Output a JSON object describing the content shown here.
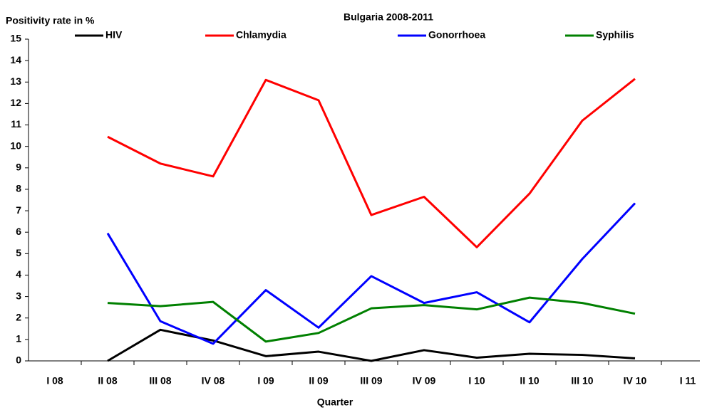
{
  "chart_data": {
    "type": "line",
    "title": "Bulgaria 2008-2011",
    "y_label": "Positivity rate in %",
    "x_label": "Quarter",
    "categories": [
      "I 08",
      "II 08",
      "III 08",
      "IV 08",
      "I 09",
      "II 09",
      "III 09",
      "IV 09",
      "I 10",
      "II 10",
      "III 10",
      "IV 10",
      "I 11"
    ],
    "series": [
      {
        "name": "HIV",
        "color": "#000000",
        "values": [
          null,
          0,
          1.45,
          0.95,
          0.22,
          0.43,
          0,
          0.5,
          0.15,
          0.33,
          0.28,
          0.12,
          null
        ]
      },
      {
        "name": "Chlamydia",
        "color": "#ff0000",
        "values": [
          null,
          10.45,
          9.2,
          8.6,
          13.1,
          12.15,
          6.8,
          7.65,
          5.3,
          7.8,
          11.2,
          13.15,
          null
        ]
      },
      {
        "name": "Gonorrhoea",
        "color": "#0000ff",
        "values": [
          null,
          5.95,
          1.85,
          0.8,
          3.3,
          1.55,
          3.95,
          2.7,
          3.2,
          1.8,
          4.75,
          7.35,
          null
        ]
      },
      {
        "name": "Syphilis",
        "color": "#008000",
        "values": [
          null,
          2.7,
          2.55,
          2.75,
          0.9,
          1.3,
          2.45,
          2.6,
          2.4,
          2.95,
          2.7,
          2.2,
          null
        ]
      }
    ],
    "ylim": [
      0,
      15
    ],
    "yticks": [
      0,
      1,
      2,
      3,
      4,
      5,
      6,
      7,
      8,
      9,
      10,
      11,
      12,
      13,
      14,
      15
    ],
    "legend": "top",
    "grid": false
  }
}
